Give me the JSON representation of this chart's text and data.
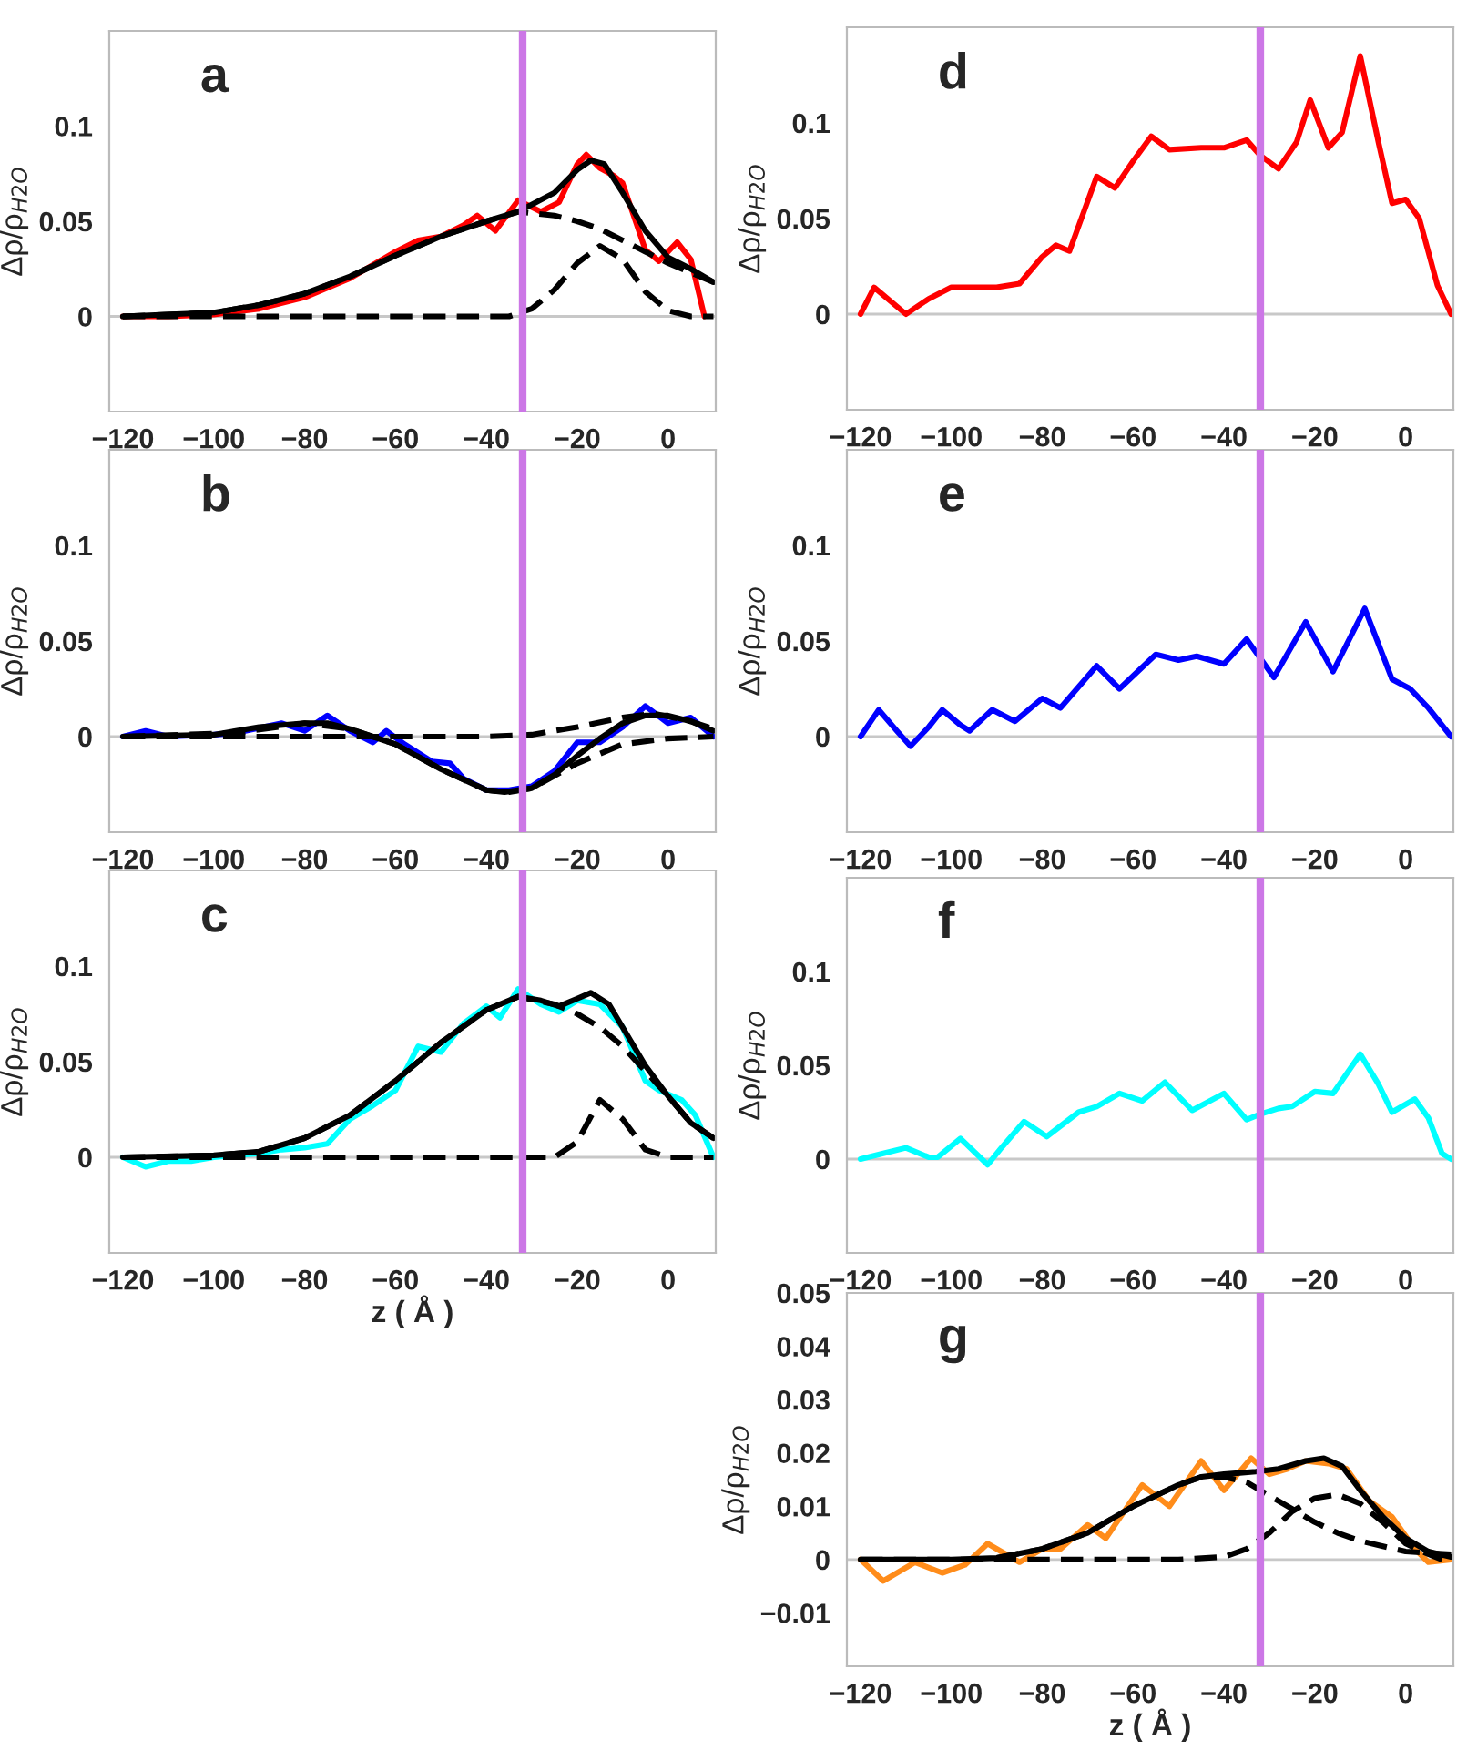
{
  "chart_data": [
    {
      "type": "line",
      "xlim": [
        -123,
        10.5
      ],
      "ylim": [
        -0.05,
        0.15
      ],
      "xticks": [
        {
          "value": -120,
          "label": "−120"
        },
        {
          "value": -100,
          "label": "−100"
        },
        {
          "value": -80,
          "label": "−80"
        },
        {
          "value": -60,
          "label": "−60"
        },
        {
          "value": -40,
          "label": "−40"
        },
        {
          "value": -20,
          "label": "−20"
        },
        0
      ],
      "yticks": [
        0,
        0.05,
        0.1
      ],
      "ylabel": "Δρ/ρ$_{H2O}$",
      "annotations": [
        "a"
      ],
      "grid": false,
      "ref_lines": [
        {
          "axis": "y",
          "value": 0,
          "color": "#c8c8c8"
        },
        {
          "axis": "x",
          "value": -32,
          "color": "#cc77e6"
        }
      ],
      "series": [
        {
          "color": "#ff0000",
          "line_style": "solid",
          "x": [
            -120,
            -110,
            -100,
            -90,
            -80,
            -70,
            -60,
            -55,
            -50,
            -45,
            -42,
            -38,
            -33,
            -28,
            -24,
            -20,
            -18,
            -15,
            -12,
            -10,
            -5,
            -2,
            2,
            5,
            8
          ],
          "values": [
            0,
            0,
            0.001,
            0.004,
            0.01,
            0.02,
            0.034,
            0.04,
            0.042,
            0.048,
            0.053,
            0.045,
            0.061,
            0.055,
            0.06,
            0.08,
            0.085,
            0.078,
            0.074,
            0.07,
            0.035,
            0.029,
            0.039,
            0.03,
            0
          ]
        },
        {
          "color": "#000000",
          "line_style": "solid",
          "x": [
            -120,
            -100,
            -90,
            -80,
            -70,
            -60,
            -50,
            -40,
            -33,
            -25,
            -20,
            -17,
            -14,
            -10,
            -5,
            0,
            5,
            10
          ],
          "values": [
            0,
            0.002,
            0.006,
            0.012,
            0.021,
            0.032,
            0.042,
            0.05,
            0.055,
            0.065,
            0.077,
            0.082,
            0.08,
            0.065,
            0.045,
            0.031,
            0.025,
            0.018
          ]
        },
        {
          "color": "#000000",
          "line_style": "dashed",
          "x": [
            -120,
            -100,
            -90,
            -80,
            -70,
            -60,
            -50,
            -40,
            -33,
            -25,
            -20,
            -15,
            -10,
            -5,
            0,
            5,
            10
          ],
          "values": [
            0,
            0.002,
            0.006,
            0.012,
            0.021,
            0.032,
            0.042,
            0.05,
            0.055,
            0.053,
            0.05,
            0.046,
            0.04,
            0.034,
            0.028,
            0.023,
            0.018
          ]
        },
        {
          "color": "#000000",
          "line_style": "dashed",
          "x": [
            -120,
            -35,
            -30,
            -25,
            -20,
            -15,
            -10,
            -5,
            0,
            5,
            10
          ],
          "values": [
            0,
            0,
            0.004,
            0.014,
            0.028,
            0.037,
            0.03,
            0.013,
            0.003,
            0,
            0
          ]
        }
      ]
    },
    {
      "type": "line",
      "xlim": [
        -123,
        10.5
      ],
      "ylim": [
        -0.05,
        0.15
      ],
      "xticks": [
        {
          "value": -120,
          "label": "−120"
        },
        {
          "value": -100,
          "label": "−100"
        },
        {
          "value": -80,
          "label": "−80"
        },
        {
          "value": -60,
          "label": "−60"
        },
        {
          "value": -40,
          "label": "−40"
        },
        {
          "value": -20,
          "label": "−20"
        },
        0
      ],
      "yticks": [
        0,
        0.05,
        0.1
      ],
      "ylabel": "Δρ/ρ$_{H2O}$",
      "annotations": [
        "b"
      ],
      "grid": false,
      "ref_lines": [
        {
          "axis": "y",
          "value": 0,
          "color": "#c8c8c8"
        },
        {
          "axis": "x",
          "value": -32,
          "color": "#cc77e6"
        }
      ],
      "series": [
        {
          "color": "#0000ff",
          "line_style": "solid",
          "x": [
            -120,
            -115,
            -110,
            -100,
            -95,
            -85,
            -80,
            -75,
            -70,
            -65,
            -62,
            -58,
            -52,
            -48,
            -45,
            -40,
            -35,
            -30,
            -25,
            -20,
            -15,
            -10,
            -5,
            0,
            5,
            10
          ],
          "values": [
            0,
            0.003,
            0,
            0.001,
            0.002,
            0.007,
            0.003,
            0.011,
            0.003,
            -0.003,
            0.003,
            -0.004,
            -0.013,
            -0.014,
            -0.022,
            -0.028,
            -0.028,
            -0.026,
            -0.018,
            -0.003,
            -0.003,
            0.005,
            0.016,
            0.007,
            0.01,
            0
          ]
        },
        {
          "color": "#000000",
          "line_style": "solid",
          "x": [
            -120,
            -100,
            -90,
            -80,
            -75,
            -70,
            -65,
            -60,
            -50,
            -40,
            -36,
            -30,
            -25,
            -20,
            -15,
            -10,
            -5,
            0,
            5,
            10
          ],
          "values": [
            0,
            0.001,
            0.005,
            0.007,
            0.007,
            0.004,
            0,
            -0.004,
            -0.017,
            -0.028,
            -0.029,
            -0.027,
            -0.02,
            -0.01,
            -0.001,
            0.007,
            0.011,
            0.011,
            0.008,
            0.003
          ]
        },
        {
          "color": "#000000",
          "line_style": "dashed",
          "x": [
            -120,
            -60,
            -40,
            -30,
            -20,
            -10,
            -3,
            5,
            10
          ],
          "values": [
            0,
            0,
            0,
            0.001,
            0.005,
            0.01,
            0.012,
            0.008,
            0.004
          ]
        },
        {
          "color": "#000000",
          "line_style": "dashed",
          "x": [
            -120,
            -95,
            -80,
            -70,
            -60,
            -50,
            -40,
            -35,
            -30,
            -20,
            -10,
            0,
            10
          ],
          "values": [
            0,
            0.002,
            0.007,
            0.004,
            -0.004,
            -0.017,
            -0.028,
            -0.029,
            -0.027,
            -0.014,
            -0.004,
            -0.001,
            0
          ]
        }
      ]
    },
    {
      "type": "line",
      "xlim": [
        -123,
        10.5
      ],
      "ylim": [
        -0.05,
        0.15
      ],
      "xticks": [
        {
          "value": -120,
          "label": "−120"
        },
        {
          "value": -100,
          "label": "−100"
        },
        {
          "value": -80,
          "label": "−80"
        },
        {
          "value": -60,
          "label": "−60"
        },
        {
          "value": -40,
          "label": "−40"
        },
        {
          "value": -20,
          "label": "−20"
        },
        0
      ],
      "yticks": [
        0,
        0.05,
        0.1
      ],
      "ylabel": "Δρ/ρ$_{H2O}$",
      "xlabel": "z ( Å )",
      "annotations": [
        "c"
      ],
      "grid": false,
      "ref_lines": [
        {
          "axis": "y",
          "value": 0,
          "color": "#c8c8c8"
        },
        {
          "axis": "x",
          "value": -32,
          "color": "#cc77e6"
        }
      ],
      "series": [
        {
          "color": "#00ffff",
          "line_style": "solid",
          "x": [
            -120,
            -115,
            -110,
            -105,
            -100,
            -90,
            -85,
            -80,
            -75,
            -70,
            -65,
            -60,
            -55,
            -50,
            -45,
            -40,
            -37,
            -33,
            -28,
            -24,
            -20,
            -15,
            -10,
            -5,
            -2,
            3,
            6,
            10
          ],
          "values": [
            0,
            -0.005,
            -0.002,
            -0.002,
            0,
            0.002,
            0.004,
            0.005,
            0.007,
            0.02,
            0.027,
            0.035,
            0.058,
            0.055,
            0.07,
            0.079,
            0.073,
            0.088,
            0.08,
            0.076,
            0.082,
            0.08,
            0.068,
            0.04,
            0.035,
            0.03,
            0.022,
            0
          ]
        },
        {
          "color": "#000000",
          "line_style": "solid",
          "x": [
            -120,
            -100,
            -90,
            -80,
            -70,
            -60,
            -50,
            -40,
            -33,
            -28,
            -24,
            -20,
            -17,
            -13,
            -10,
            -5,
            0,
            5,
            10
          ],
          "values": [
            0,
            0.001,
            0.003,
            0.01,
            0.022,
            0.04,
            0.06,
            0.077,
            0.084,
            0.082,
            0.079,
            0.083,
            0.086,
            0.08,
            0.068,
            0.048,
            0.032,
            0.018,
            0.01
          ]
        },
        {
          "color": "#000000",
          "line_style": "dashed",
          "x": [
            -120,
            -100,
            -90,
            -80,
            -70,
            -60,
            -50,
            -40,
            -33,
            -25,
            -20,
            -15,
            -10,
            -5,
            0,
            5,
            10
          ],
          "values": [
            0,
            0.001,
            0.003,
            0.01,
            0.022,
            0.04,
            0.06,
            0.077,
            0.084,
            0.08,
            0.075,
            0.068,
            0.058,
            0.045,
            0.032,
            0.018,
            0.01
          ]
        },
        {
          "color": "#000000",
          "line_style": "dashed",
          "x": [
            -120,
            -25,
            -20,
            -15,
            -10,
            -5,
            0,
            10
          ],
          "values": [
            0,
            0,
            0.008,
            0.03,
            0.02,
            0.004,
            0,
            0
          ]
        }
      ]
    },
    {
      "type": "line",
      "xlim": [
        -123,
        10.5
      ],
      "ylim": [
        -0.05,
        0.15
      ],
      "xticks": [
        {
          "value": -120,
          "label": "−120"
        },
        {
          "value": -100,
          "label": "−100"
        },
        {
          "value": -80,
          "label": "−80"
        },
        {
          "value": -60,
          "label": "−60"
        },
        {
          "value": -40,
          "label": "−40"
        },
        {
          "value": -20,
          "label": "−20"
        },
        0
      ],
      "yticks": [
        0,
        0.05,
        0.1
      ],
      "ylabel": "Δρ/ρ$_{H2O}$",
      "annotations": [
        "d"
      ],
      "grid": false,
      "ref_lines": [
        {
          "axis": "y",
          "value": 0,
          "color": "#c8c8c8"
        },
        {
          "axis": "x",
          "value": -32,
          "color": "#cc77e6"
        }
      ],
      "series": [
        {
          "color": "#ff0000",
          "line_style": "solid",
          "x": [
            -120,
            -117,
            -110,
            -105,
            -100,
            -90,
            -85,
            -80,
            -77,
            -74,
            -68,
            -64,
            -60,
            -56,
            -52,
            -45,
            -40,
            -35,
            -32,
            -28,
            -24,
            -21,
            -17,
            -14,
            -10,
            -6,
            -3,
            0,
            3,
            7,
            10
          ],
          "values": [
            0,
            0.014,
            0,
            0.008,
            0.014,
            0.014,
            0.016,
            0.03,
            0.036,
            0.033,
            0.072,
            0.066,
            0.08,
            0.093,
            0.086,
            0.087,
            0.087,
            0.091,
            0.083,
            0.076,
            0.09,
            0.112,
            0.087,
            0.095,
            0.135,
            0.09,
            0.058,
            0.06,
            0.05,
            0.015,
            0
          ]
        }
      ]
    },
    {
      "type": "line",
      "xlim": [
        -123,
        10.5
      ],
      "ylim": [
        -0.05,
        0.15
      ],
      "xticks": [
        {
          "value": -120,
          "label": "−120"
        },
        {
          "value": -100,
          "label": "−100"
        },
        {
          "value": -80,
          "label": "−80"
        },
        {
          "value": -60,
          "label": "−60"
        },
        {
          "value": -40,
          "label": "−40"
        },
        {
          "value": -20,
          "label": "−20"
        },
        0
      ],
      "yticks": [
        0,
        0.05,
        0.1
      ],
      "ylabel": "Δρ/ρ$_{H2O}$",
      "annotations": [
        "e"
      ],
      "grid": false,
      "ref_lines": [
        {
          "axis": "y",
          "value": 0,
          "color": "#c8c8c8"
        },
        {
          "axis": "x",
          "value": -32,
          "color": "#cc77e6"
        }
      ],
      "series": [
        {
          "color": "#0000ff",
          "line_style": "solid",
          "x": [
            -120,
            -116,
            -112,
            -109,
            -105,
            -102,
            -98,
            -96,
            -91,
            -86,
            -80,
            -76,
            -68,
            -63,
            -55,
            -50,
            -46,
            -40,
            -35,
            -29,
            -22,
            -16,
            -9,
            -3,
            1,
            5,
            10
          ],
          "values": [
            0,
            0.014,
            0.003,
            -0.005,
            0.005,
            0.014,
            0.006,
            0.003,
            0.014,
            0.008,
            0.02,
            0.015,
            0.037,
            0.025,
            0.043,
            0.04,
            0.042,
            0.038,
            0.051,
            0.031,
            0.06,
            0.034,
            0.067,
            0.03,
            0.025,
            0.015,
            0
          ]
        }
      ]
    },
    {
      "type": "line",
      "xlim": [
        -123,
        10.5
      ],
      "ylim": [
        -0.05,
        0.15
      ],
      "xticks": [
        {
          "value": -120,
          "label": "−120"
        },
        {
          "value": -100,
          "label": "−100"
        },
        {
          "value": -80,
          "label": "−80"
        },
        {
          "value": -60,
          "label": "−60"
        },
        {
          "value": -40,
          "label": "−40"
        },
        {
          "value": -20,
          "label": "−20"
        },
        0
      ],
      "yticks": [
        0,
        0.05,
        0.1
      ],
      "ylabel": "Δρ/ρ$_{H2O}$",
      "annotations": [
        "f"
      ],
      "grid": false,
      "ref_lines": [
        {
          "axis": "y",
          "value": 0,
          "color": "#c8c8c8"
        },
        {
          "axis": "x",
          "value": -32,
          "color": "#cc77e6"
        }
      ],
      "series": [
        {
          "color": "#00ffff",
          "line_style": "solid",
          "x": [
            -120,
            -115,
            -110,
            -105,
            -103,
            -98,
            -92,
            -89,
            -84,
            -79,
            -72,
            -68,
            -63,
            -58,
            -53,
            -47,
            -40,
            -35,
            -32,
            -28,
            -25,
            -20,
            -16,
            -10,
            -6,
            -3,
            2,
            5,
            8,
            10
          ],
          "values": [
            0,
            0.003,
            0.006,
            0.001,
            0.001,
            0.011,
            -0.003,
            0.006,
            0.02,
            0.012,
            0.025,
            0.028,
            0.035,
            0.031,
            0.041,
            0.026,
            0.035,
            0.021,
            0.024,
            0.027,
            0.028,
            0.036,
            0.035,
            0.056,
            0.04,
            0.025,
            0.032,
            0.022,
            0.003,
            0
          ]
        }
      ]
    },
    {
      "type": "line",
      "xlim": [
        -123,
        10.5
      ],
      "ylim": [
        -0.02,
        0.05
      ],
      "xticks": [
        {
          "value": -120,
          "label": "−120"
        },
        {
          "value": -100,
          "label": "−100"
        },
        {
          "value": -80,
          "label": "−80"
        },
        {
          "value": -60,
          "label": "−60"
        },
        {
          "value": -40,
          "label": "−40"
        },
        {
          "value": -20,
          "label": "−20"
        },
        0
      ],
      "yticks": [
        {
          "value": -0.01,
          "label": "−0.01"
        },
        0,
        0.01,
        0.02,
        0.03,
        0.04,
        0.05
      ],
      "ylabel": "Δρ/ρ$_{H2O}$",
      "xlabel": "z ( Å )",
      "annotations": [
        "g"
      ],
      "grid": false,
      "ref_lines": [
        {
          "axis": "y",
          "value": 0,
          "color": "#c8c8c8"
        },
        {
          "axis": "x",
          "value": -32,
          "color": "#cc77e6"
        }
      ],
      "series": [
        {
          "color": "#ff8c1a",
          "line_style": "solid",
          "x": [
            -120,
            -115,
            -108,
            -102,
            -97,
            -92,
            -88,
            -85,
            -80,
            -76,
            -70,
            -66,
            -58,
            -52,
            -45,
            -40,
            -34,
            -30,
            -26,
            -22,
            -17,
            -13,
            -8,
            -3,
            2,
            5,
            10
          ],
          "values": [
            0,
            -0.004,
            -0.0005,
            -0.0025,
            -0.001,
            0.003,
            0.001,
            -0.0005,
            0.002,
            0.002,
            0.0065,
            0.004,
            0.014,
            0.01,
            0.0185,
            0.013,
            0.019,
            0.016,
            0.017,
            0.0185,
            0.018,
            0.017,
            0.011,
            0.008,
            0.002,
            -0.0005,
            0
          ]
        },
        {
          "color": "#000000",
          "line_style": "solid",
          "x": [
            -120,
            -100,
            -90,
            -80,
            -70,
            -60,
            -50,
            -45,
            -40,
            -33,
            -28,
            -22,
            -18,
            -14,
            -10,
            -5,
            0,
            5,
            10
          ],
          "values": [
            0,
            0,
            0.0003,
            0.002,
            0.005,
            0.01,
            0.014,
            0.0155,
            0.016,
            0.0165,
            0.017,
            0.0185,
            0.019,
            0.0175,
            0.013,
            0.008,
            0.004,
            0.0015,
            0.0005
          ]
        },
        {
          "color": "#000000",
          "line_style": "dashed",
          "x": [
            -90,
            -80,
            -70,
            -60,
            -50,
            -45,
            -40,
            -35,
            -30,
            -25,
            -20,
            -15,
            -10,
            -5,
            0,
            10
          ],
          "values": [
            0.0003,
            0.002,
            0.005,
            0.01,
            0.014,
            0.0155,
            0.0155,
            0.0145,
            0.012,
            0.0095,
            0.007,
            0.005,
            0.0035,
            0.0025,
            0.0015,
            0.001
          ]
        },
        {
          "color": "#000000",
          "line_style": "dashed",
          "x": [
            -120,
            -50,
            -40,
            -35,
            -30,
            -25,
            -20,
            -15,
            -10,
            -5,
            0,
            5,
            8
          ],
          "values": [
            0,
            0,
            0.0005,
            0.002,
            0.005,
            0.009,
            0.0115,
            0.0122,
            0.0105,
            0.007,
            0.003,
            0.001,
            0
          ]
        }
      ]
    }
  ]
}
